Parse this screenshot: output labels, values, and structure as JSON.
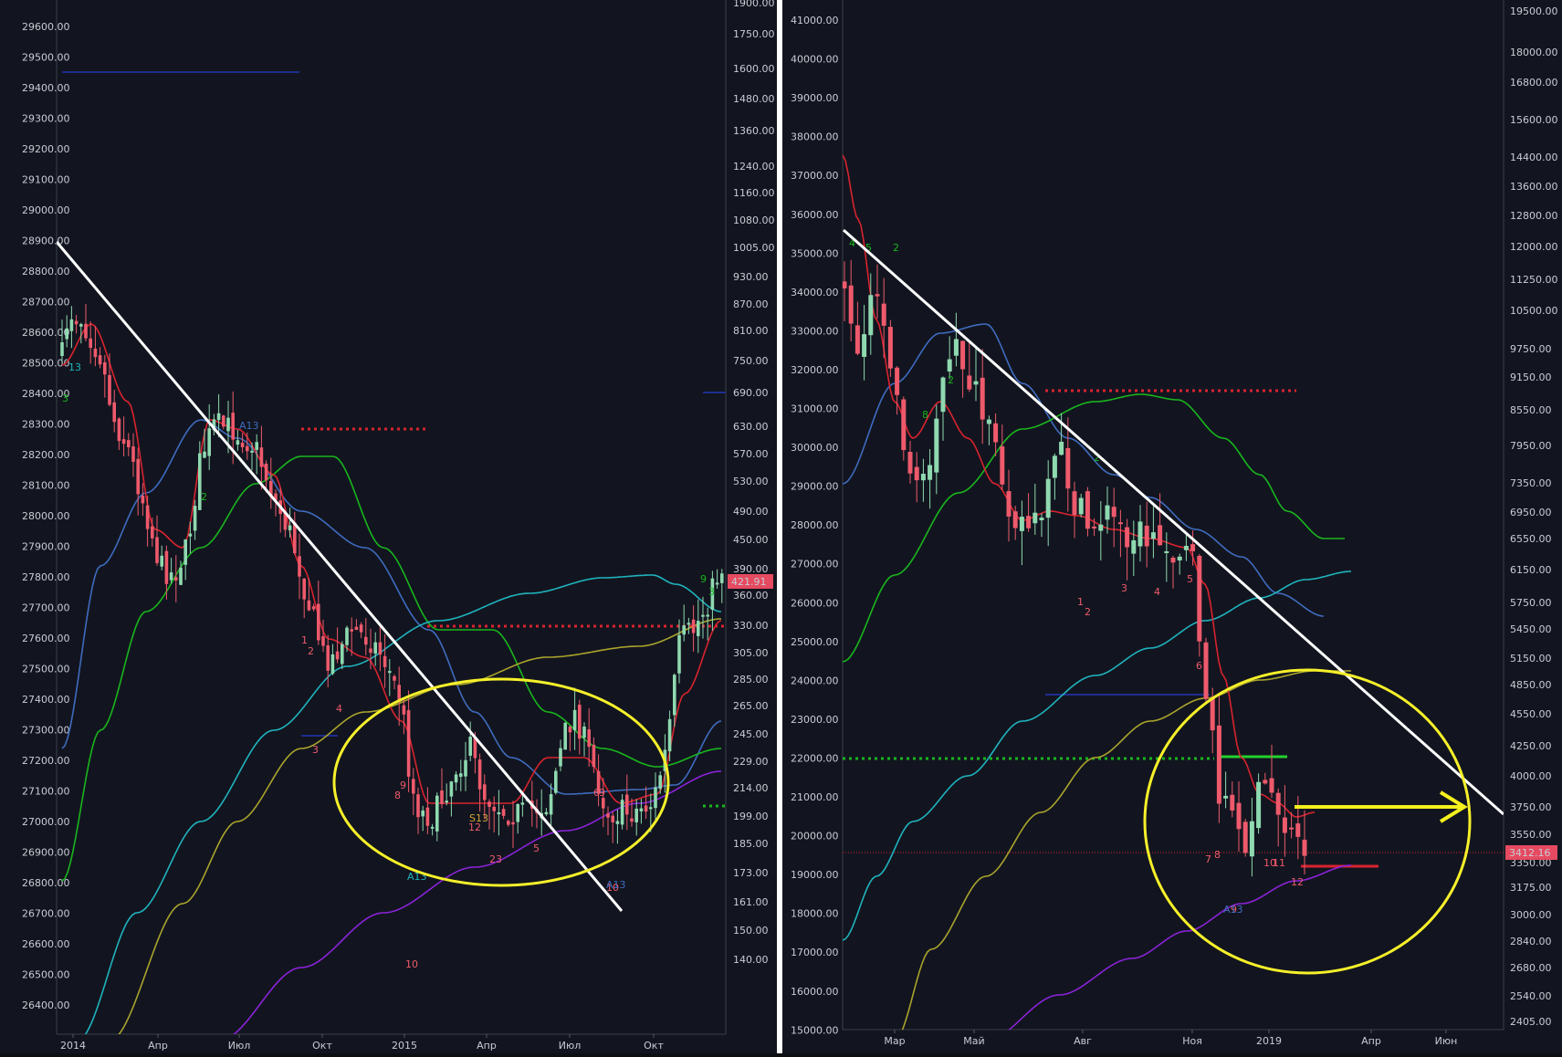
{
  "chart_data": [
    {
      "type": "candlestick",
      "panel": "left",
      "left_axis": {
        "ticks": [
          "29600.00",
          "29500.00",
          "29400.00",
          "29300.00",
          "29200.00",
          "29100.00",
          "29000.00",
          "28900.00",
          "28800.00",
          "28700.00",
          "28600.00",
          "28500.00",
          "28400.00",
          "28300.00",
          "28200.00",
          "28100.00",
          "28000.00",
          "27900.00",
          "27800.00",
          "27700.00",
          "27600.00",
          "27500.00",
          "27400.00",
          "27300.00",
          "27200.00",
          "27100.00",
          "27000.00",
          "26900.00",
          "26800.00",
          "26700.00",
          "26600.00",
          "26500.00",
          "26400.00"
        ]
      },
      "right_axis": {
        "scale": "log",
        "ticks": [
          "1900.00",
          "1750.00",
          "1600.00",
          "1480.00",
          "1360.00",
          "1240.00",
          "1160.00",
          "1080.00",
          "1005.00",
          "930.00",
          "870.00",
          "810.00",
          "750.00",
          "690.00",
          "630.00",
          "570.00",
          "530.00",
          "490.00",
          "450.00",
          "390.00",
          "360.00",
          "330.00",
          "305.00",
          "285.00",
          "265.00",
          "245.00",
          "229.00",
          "214.00",
          "199.00",
          "185.00",
          "173.00",
          "161.00",
          "150.00",
          "140.00"
        ]
      },
      "x_axis": {
        "ticks": [
          "2014",
          "Апр",
          "Июл",
          "Окт",
          "2015",
          "Апр",
          "Июл",
          "Окт"
        ]
      },
      "last_price": "421.91",
      "annotations": {
        "sequence_labels_red": [
          "1",
          "2",
          "3",
          "4",
          "8",
          "9",
          "10",
          "2",
          "3",
          "5",
          "6",
          "9"
        ],
        "sequence_labels_green": [
          "2",
          "3",
          "2",
          "1",
          "9",
          "3"
        ],
        "countdown_labels": [
          "13",
          "A13",
          "S13",
          "12",
          "A13"
        ]
      }
    },
    {
      "type": "candlestick",
      "panel": "right",
      "left_axis": {
        "ticks": [
          "41000.00",
          "40000.00",
          "39000.00",
          "38000.00",
          "37000.00",
          "36000.00",
          "35000.00",
          "34000.00",
          "33000.00",
          "32000.00",
          "31000.00",
          "30000.00",
          "29000.00",
          "28000.00",
          "27000.00",
          "26000.00",
          "25000.00",
          "24000.00",
          "23000.00",
          "22000.00",
          "21000.00",
          "20000.00",
          "19000.00",
          "18000.00",
          "17000.00",
          "16000.00",
          "15000.00"
        ]
      },
      "right_axis": {
        "scale": "log",
        "ticks": [
          "19500.00",
          "18000.00",
          "16800.00",
          "15600.00",
          "14400.00",
          "13600.00",
          "12800.00",
          "12000.00",
          "11250.00",
          "10500.00",
          "9750.00",
          "9150.00",
          "8550.00",
          "7950.00",
          "7350.00",
          "6950.00",
          "6550.00",
          "6150.00",
          "5750.00",
          "5450.00",
          "5150.00",
          "4850.00",
          "4550.00",
          "4250.00",
          "4000.00",
          "3750.00",
          "3550.00",
          "3350.00",
          "3175.00",
          "3000.00",
          "2840.00",
          "2680.00",
          "2540.00",
          "2405.00"
        ]
      },
      "x_axis": {
        "ticks": [
          "Мар",
          "Май",
          "Авг",
          "Ноя",
          "2019",
          "Апр",
          "Июн"
        ]
      },
      "last_price": "3412.16",
      "annotations": {
        "sequence_labels_red": [
          "1",
          "2",
          "3",
          "4",
          "5",
          "6",
          "7",
          "8",
          "9",
          "10",
          "11",
          "12"
        ],
        "sequence_labels_green": [
          "2",
          "5",
          "1",
          "2",
          "3"
        ],
        "countdown_labels": [
          "A13"
        ]
      }
    }
  ],
  "colors": {
    "background": "#12151f",
    "up_candle": "#8fd9b0",
    "down_candle": "#ee5a6c",
    "trendline": "#ffffff",
    "highlight_ellipse": "#f6f02a",
    "ma_blue": "#3f6bbf",
    "ma_green": "#19b51e",
    "ma_cyan": "#1fb3be",
    "ma_olive": "#a9a32c",
    "ma_purple": "#8a22d8",
    "ma_red": "#d8232f",
    "ma_orange": "#c2862a",
    "arrow": "#f4f01d",
    "price_badge": "#e64a60"
  }
}
